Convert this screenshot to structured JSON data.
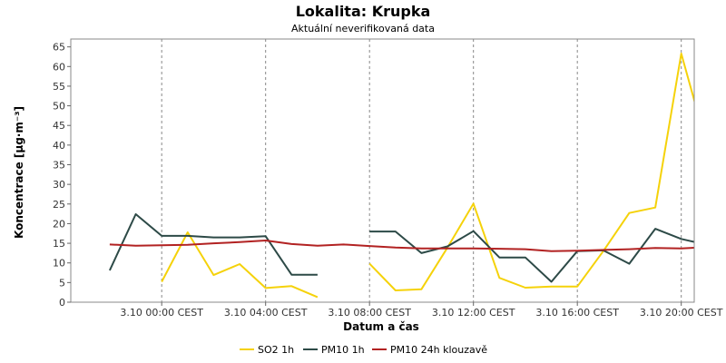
{
  "chart_data": {
    "type": "line",
    "title": "Lokalita: Krupka",
    "subtitle": "Aktuální neverifikovaná data",
    "xlabel": "Datum a čas",
    "ylabel": "Koncentrace [µg·m⁻³]",
    "ylim": [
      0,
      67
    ],
    "yticks": [
      0,
      5,
      10,
      15,
      20,
      25,
      30,
      35,
      40,
      45,
      50,
      55,
      60,
      65
    ],
    "xlim": [
      -1.5,
      22.5
    ],
    "xticks": [
      {
        "x": 2,
        "label": "3.10 00:00 CEST"
      },
      {
        "x": 6,
        "label": "3.10 04:00 CEST"
      },
      {
        "x": 10,
        "label": "3.10 08:00 CEST"
      },
      {
        "x": 14,
        "label": "3.10 12:00 CEST"
      },
      {
        "x": 18,
        "label": "3.10 16:00 CEST"
      },
      {
        "x": 22,
        "label": "3.10 20:00 CEST"
      }
    ],
    "grid": true,
    "legend_position": "bottom",
    "series": [
      {
        "name": "SO2 1h",
        "color": "#f5d20a",
        "points": [
          [
            2,
            5.2
          ],
          [
            3,
            17.8
          ],
          [
            4,
            6.9
          ],
          [
            5,
            9.7
          ],
          [
            6,
            3.6
          ],
          [
            7,
            4.1
          ],
          [
            8,
            1.3
          ],
          null,
          [
            10,
            9.8
          ],
          [
            11,
            3.0
          ],
          [
            12,
            3.3
          ],
          [
            13,
            13.9
          ],
          [
            14,
            25.1
          ],
          [
            15,
            6.2
          ],
          [
            16,
            3.7
          ],
          [
            17,
            4.0
          ],
          [
            18,
            4.0
          ],
          [
            19,
            13.0
          ],
          [
            20,
            22.7
          ],
          [
            21,
            24.1
          ],
          [
            22,
            63.3
          ],
          [
            23,
            39.5
          ]
        ]
      },
      {
        "name": "PM10 1h",
        "color": "#2d4a47",
        "points": [
          [
            0,
            8.1
          ],
          [
            1,
            22.4
          ],
          [
            2,
            16.9
          ],
          [
            3,
            16.9
          ],
          [
            4,
            16.5
          ],
          [
            5,
            16.5
          ],
          [
            6,
            16.8
          ],
          [
            7,
            7.0
          ],
          [
            8,
            7.0
          ],
          null,
          [
            10,
            18.0
          ],
          [
            11,
            18.0
          ],
          [
            12,
            12.5
          ],
          [
            13,
            14.2
          ],
          [
            14,
            18.1
          ],
          [
            15,
            11.4
          ],
          [
            16,
            11.4
          ],
          [
            17,
            5.2
          ],
          [
            18,
            13.0
          ],
          [
            19,
            13.2
          ],
          [
            20,
            9.8
          ],
          [
            21,
            18.7
          ],
          [
            22,
            16.1
          ],
          [
            23,
            14.6
          ]
        ]
      },
      {
        "name": "PM10 24h klouzavě",
        "color": "#b22222",
        "points": [
          [
            0,
            14.7
          ],
          [
            1,
            14.4
          ],
          [
            2,
            14.5
          ],
          [
            3,
            14.6
          ],
          [
            4,
            15.0
          ],
          [
            5,
            15.3
          ],
          [
            6,
            15.7
          ],
          [
            7,
            14.8
          ],
          [
            8,
            14.4
          ],
          [
            9,
            14.7
          ],
          [
            10,
            14.3
          ],
          [
            11,
            13.9
          ],
          [
            12,
            13.7
          ],
          [
            13,
            13.7
          ],
          [
            14,
            13.7
          ],
          [
            15,
            13.6
          ],
          [
            16,
            13.5
          ],
          [
            17,
            13.0
          ],
          [
            18,
            13.1
          ],
          [
            19,
            13.3
          ],
          [
            20,
            13.5
          ],
          [
            21,
            13.8
          ],
          [
            22,
            13.7
          ],
          [
            23,
            14.0
          ]
        ]
      }
    ]
  }
}
